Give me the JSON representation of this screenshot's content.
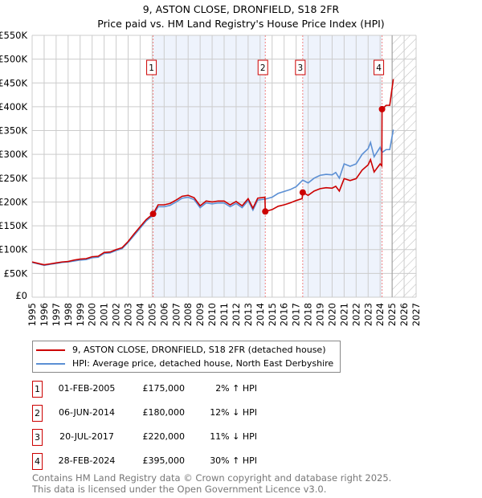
{
  "chart_data": {
    "type": "line",
    "title": "9, ASTON CLOSE, DRONFIELD, S18 2FR",
    "subtitle": "Price paid vs. HM Land Registry's House Price Index (HPI)",
    "xlim": [
      1995,
      2027
    ],
    "ylim": [
      0,
      550000
    ],
    "x_ticks": [
      "1995",
      "1996",
      "1997",
      "1998",
      "1999",
      "2000",
      "2001",
      "2002",
      "2003",
      "2004",
      "2005",
      "2006",
      "2007",
      "2008",
      "2009",
      "2010",
      "2011",
      "2012",
      "2013",
      "2014",
      "2015",
      "2016",
      "2017",
      "2018",
      "2019",
      "2020",
      "2021",
      "2022",
      "2023",
      "2024",
      "2025",
      "2026",
      "2027"
    ],
    "y_ticks": [
      {
        "v": 0,
        "l": "£0"
      },
      {
        "v": 50000,
        "l": "£50K"
      },
      {
        "v": 100000,
        "l": "£100K"
      },
      {
        "v": 150000,
        "l": "£150K"
      },
      {
        "v": 200000,
        "l": "£200K"
      },
      {
        "v": 250000,
        "l": "£250K"
      },
      {
        "v": 300000,
        "l": "£300K"
      },
      {
        "v": 350000,
        "l": "£350K"
      },
      {
        "v": 400000,
        "l": "£400K"
      },
      {
        "v": 450000,
        "l": "£450K"
      },
      {
        "v": 500000,
        "l": "£500K"
      },
      {
        "v": 550000,
        "l": "£550K"
      }
    ],
    "grid": true,
    "forecast_start": 2025.0,
    "series": [
      {
        "name": "9, ASTON CLOSE, DRONFIELD, S18 2FR (detached house)",
        "color": "#cc0000",
        "x": [
          1995,
          1995.5,
          1996,
          1996.5,
          1997,
          1997.5,
          1998,
          1998.5,
          1999,
          1999.5,
          2000,
          2000.5,
          2001,
          2001.5,
          2002,
          2002.5,
          2003,
          2003.5,
          2004,
          2004.5,
          2005.08,
          2005.5,
          2006,
          2006.5,
          2007,
          2007.5,
          2008,
          2008.5,
          2009,
          2009.5,
          2010,
          2010.5,
          2011,
          2011.5,
          2012,
          2012.5,
          2013,
          2013.4,
          2013.8,
          2014.4,
          2014.43,
          2015,
          2015.5,
          2016,
          2016.5,
          2017,
          2017.5,
          2017.55,
          2018,
          2018.5,
          2019,
          2019.5,
          2020,
          2020.3,
          2020.6,
          2021,
          2021.5,
          2022,
          2022.5,
          2023,
          2023.2,
          2023.5,
          2024,
          2024.14,
          2024.16,
          2024.5,
          2024.8,
          2025.1
        ],
        "y": [
          74,
          71,
          68,
          70,
          72,
          74,
          75,
          78,
          80,
          81,
          85,
          86,
          94,
          95,
          100,
          104,
          117,
          133,
          148,
          163,
          175,
          194,
          194,
          197,
          204,
          212,
          214,
          209,
          192,
          202,
          200,
          202,
          202,
          194,
          201,
          192,
          207,
          187,
          208,
          210,
          180,
          184,
          191,
          194,
          198,
          203,
          207,
          220,
          214,
          223,
          228,
          230,
          229,
          233,
          223,
          249,
          245,
          249,
          267,
          278,
          289,
          263,
          280,
          276,
          395,
          403,
          403,
          458
        ]
      },
      {
        "name": "HPI: Average price, detached house, North East Derbyshire",
        "color": "#5b8fd4",
        "x": [
          1995,
          1995.5,
          1996,
          1996.5,
          1997,
          1997.5,
          1998,
          1998.5,
          1999,
          1999.5,
          2000,
          2000.5,
          2001,
          2001.5,
          2002,
          2002.5,
          2003,
          2003.5,
          2004,
          2004.5,
          2005.08,
          2005.5,
          2006,
          2006.5,
          2007,
          2007.5,
          2008,
          2008.5,
          2009,
          2009.5,
          2010,
          2010.5,
          2011,
          2011.5,
          2012,
          2012.5,
          2013,
          2013.4,
          2013.8,
          2014.43,
          2015,
          2015.5,
          2016,
          2016.5,
          2017,
          2017.55,
          2018,
          2018.5,
          2019,
          2019.5,
          2020,
          2020.3,
          2020.6,
          2021,
          2021.5,
          2022,
          2022.5,
          2023,
          2023.2,
          2023.5,
          2024,
          2024.16,
          2024.5,
          2024.8,
          2025.1
        ],
        "y": [
          73,
          70,
          67,
          69,
          71,
          73,
          74,
          76,
          78,
          79,
          83,
          84,
          92,
          93,
          98,
          102,
          115,
          130,
          145,
          160,
          172,
          190,
          190,
          193,
          200,
          208,
          210,
          205,
          188,
          198,
          196,
          198,
          198,
          190,
          197,
          188,
          203,
          183,
          204,
          206,
          210,
          218,
          222,
          226,
          232,
          246,
          240,
          250,
          256,
          258,
          257,
          262,
          250,
          280,
          275,
          280,
          300,
          312,
          325,
          295,
          315,
          304,
          310,
          310,
          352
        ]
      }
    ],
    "y_unit": "thousands GBP",
    "sales": [
      {
        "n": "1",
        "x": 2005.08,
        "date": "01-FEB-2005",
        "price": "£175,000",
        "value": 175,
        "hpi": "2% ↑ HPI"
      },
      {
        "n": "2",
        "x": 2014.43,
        "date": "06-JUN-2014",
        "price": "£180,000",
        "value": 180,
        "hpi": "12% ↓ HPI"
      },
      {
        "n": "3",
        "x": 2017.55,
        "date": "20-JUL-2017",
        "price": "£220,000",
        "value": 220,
        "hpi": "11% ↓ HPI"
      },
      {
        "n": "4",
        "x": 2024.16,
        "date": "28-FEB-2024",
        "price": "£395,000",
        "value": 395,
        "hpi": "30% ↑ HPI"
      }
    ]
  },
  "footer": {
    "line1": "Contains HM Land Registry data © Crown copyright and database right 2025.",
    "line2": "This data is licensed under the Open Government Licence v3.0."
  }
}
